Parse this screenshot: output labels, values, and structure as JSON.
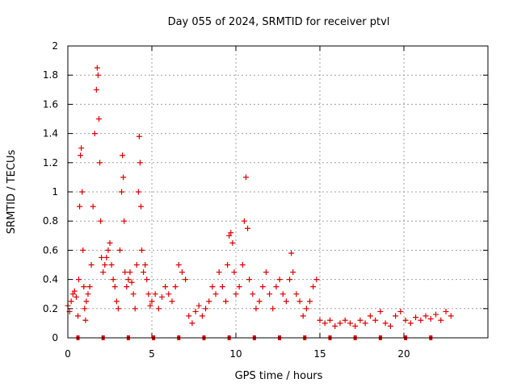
{
  "chart_data": {
    "type": "scatter",
    "title": "Day 055 of 2024, SRMTID for receiver ptvl",
    "xlabel": "GPS time / hours",
    "ylabel": "SRMTID / TECUs",
    "xlim": [
      0,
      25
    ],
    "ylim": [
      0,
      2
    ],
    "x_ticks": [
      0,
      5,
      10,
      15,
      20
    ],
    "y_ticks": [
      0,
      0.2,
      0.4,
      0.6,
      0.8,
      1,
      1.2,
      1.4,
      1.6,
      1.8,
      2
    ],
    "x_tick_labels": [
      "0",
      "5",
      "10",
      "15",
      "20"
    ],
    "y_tick_labels": [
      "0",
      "0.2",
      "0.4",
      "0.6",
      "0.8",
      "1",
      "1.2",
      "1.4",
      "1.6",
      "1.8",
      "2"
    ],
    "grid": true,
    "marker": "+",
    "marker_color": "#dd0000",
    "baseline_marks_x": [
      0.6,
      2.1,
      3.6,
      5.1,
      6.6,
      8.1,
      9.6,
      11.1,
      12.6,
      14.1,
      15.6,
      17.1,
      18.6,
      20.1,
      21.6
    ],
    "series": [
      {
        "name": "SRMTID",
        "x": [
          0.0,
          0.1,
          0.2,
          0.3,
          0.4,
          0.5,
          0.6,
          0.65,
          0.7,
          0.75,
          0.8,
          0.85,
          0.9,
          0.95,
          1.0,
          1.05,
          1.1,
          1.2,
          1.3,
          1.4,
          1.5,
          1.6,
          1.7,
          1.75,
          1.8,
          1.85,
          1.9,
          1.95,
          2.0,
          2.1,
          2.2,
          2.3,
          2.4,
          2.5,
          2.6,
          2.7,
          2.8,
          2.9,
          3.0,
          3.1,
          3.2,
          3.25,
          3.3,
          3.35,
          3.4,
          3.5,
          3.6,
          3.7,
          3.8,
          3.9,
          4.0,
          4.1,
          4.2,
          4.25,
          4.3,
          4.35,
          4.4,
          4.5,
          4.6,
          4.7,
          4.8,
          4.9,
          5.0,
          5.2,
          5.4,
          5.6,
          5.8,
          6.0,
          6.2,
          6.4,
          6.6,
          6.8,
          7.0,
          7.2,
          7.4,
          7.6,
          7.8,
          8.0,
          8.2,
          8.4,
          8.6,
          8.8,
          9.0,
          9.2,
          9.4,
          9.5,
          9.6,
          9.7,
          9.8,
          9.9,
          10.0,
          10.2,
          10.4,
          10.5,
          10.6,
          10.7,
          10.8,
          11.0,
          11.2,
          11.4,
          11.6,
          11.8,
          12.0,
          12.2,
          12.4,
          12.6,
          12.8,
          13.0,
          13.2,
          13.3,
          13.4,
          13.6,
          13.8,
          14.0,
          14.2,
          14.4,
          14.6,
          14.8,
          15.0,
          15.3,
          15.6,
          15.9,
          16.2,
          16.5,
          16.8,
          17.1,
          17.4,
          17.7,
          18.0,
          18.3,
          18.6,
          18.9,
          19.2,
          19.5,
          19.8,
          20.1,
          20.4,
          20.7,
          21.0,
          21.3,
          21.6,
          21.9,
          22.2,
          22.5,
          22.8
        ],
        "y": [
          0.22,
          0.18,
          0.25,
          0.3,
          0.32,
          0.28,
          0.15,
          0.4,
          0.9,
          1.25,
          1.3,
          1.0,
          0.6,
          0.35,
          0.2,
          0.12,
          0.25,
          0.3,
          0.35,
          0.5,
          0.9,
          1.4,
          1.7,
          1.85,
          1.8,
          1.5,
          1.2,
          0.8,
          0.55,
          0.45,
          0.5,
          0.55,
          0.6,
          0.65,
          0.5,
          0.4,
          0.35,
          0.25,
          0.2,
          0.6,
          1.0,
          1.25,
          1.1,
          0.8,
          0.45,
          0.35,
          0.4,
          0.45,
          0.38,
          0.3,
          0.2,
          0.5,
          1.0,
          1.38,
          1.2,
          0.9,
          0.6,
          0.45,
          0.5,
          0.4,
          0.3,
          0.22,
          0.25,
          0.3,
          0.2,
          0.28,
          0.35,
          0.3,
          0.25,
          0.35,
          0.5,
          0.45,
          0.4,
          0.15,
          0.1,
          0.18,
          0.22,
          0.15,
          0.2,
          0.25,
          0.35,
          0.3,
          0.45,
          0.35,
          0.25,
          0.5,
          0.7,
          0.72,
          0.65,
          0.45,
          0.3,
          0.35,
          0.5,
          0.8,
          1.1,
          0.75,
          0.4,
          0.3,
          0.2,
          0.25,
          0.35,
          0.45,
          0.3,
          0.2,
          0.35,
          0.4,
          0.3,
          0.25,
          0.4,
          0.58,
          0.45,
          0.3,
          0.25,
          0.15,
          0.2,
          0.25,
          0.35,
          0.4,
          0.12,
          0.1,
          0.12,
          0.08,
          0.1,
          0.12,
          0.1,
          0.08,
          0.12,
          0.1,
          0.15,
          0.12,
          0.18,
          0.1,
          0.08,
          0.15,
          0.18,
          0.12,
          0.1,
          0.14,
          0.12,
          0.15,
          0.13,
          0.16,
          0.12,
          0.18,
          0.15
        ]
      }
    ]
  }
}
